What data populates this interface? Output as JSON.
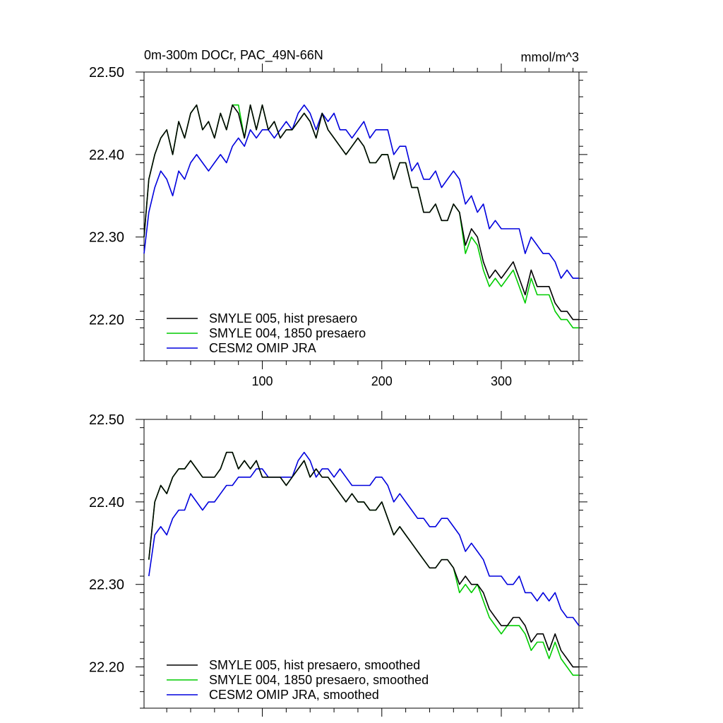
{
  "figure": {
    "top_title_left": "0m-300m DOCr, PAC_49N-66N",
    "top_title_right": "mmol/m^3"
  },
  "chart_data": [
    {
      "type": "line",
      "panel": "top",
      "xlim": [
        1,
        365
      ],
      "ylim": [
        22.15,
        22.5
      ],
      "x_ticks": [
        100,
        200,
        300
      ],
      "x_tick_labels": [
        "100",
        "200",
        "300"
      ],
      "y_ticks": [
        22.2,
        22.3,
        22.4,
        22.5
      ],
      "y_tick_labels": [
        "22.20",
        "22.30",
        "22.40",
        "22.50"
      ],
      "legend_placement": "bottom-left",
      "series": [
        {
          "name": "SMYLE 005, hist presaero",
          "color": "#000000",
          "x": [
            1,
            5,
            10,
            15,
            20,
            25,
            30,
            35,
            40,
            45,
            50,
            55,
            60,
            65,
            70,
            75,
            80,
            85,
            90,
            95,
            100,
            105,
            110,
            115,
            120,
            125,
            130,
            135,
            140,
            145,
            150,
            155,
            160,
            165,
            170,
            175,
            180,
            185,
            190,
            195,
            200,
            205,
            210,
            215,
            220,
            225,
            230,
            235,
            240,
            245,
            250,
            255,
            260,
            265,
            270,
            275,
            280,
            285,
            290,
            295,
            300,
            305,
            310,
            315,
            320,
            325,
            330,
            335,
            340,
            345,
            350,
            355,
            360,
            365
          ],
          "values": [
            22.3,
            22.37,
            22.4,
            22.42,
            22.43,
            22.4,
            22.44,
            22.42,
            22.45,
            22.46,
            22.43,
            22.44,
            22.42,
            22.45,
            22.43,
            22.46,
            22.45,
            22.42,
            22.46,
            22.43,
            22.46,
            22.43,
            22.44,
            22.42,
            22.43,
            22.43,
            22.44,
            22.45,
            22.44,
            22.42,
            22.45,
            22.43,
            22.42,
            22.41,
            22.4,
            22.41,
            22.42,
            22.41,
            22.39,
            22.39,
            22.4,
            22.4,
            22.37,
            22.39,
            22.39,
            22.36,
            22.36,
            22.33,
            22.33,
            22.34,
            22.32,
            22.32,
            22.34,
            22.33,
            22.29,
            22.31,
            22.3,
            22.27,
            22.25,
            22.26,
            22.25,
            22.26,
            22.27,
            22.25,
            22.23,
            22.26,
            22.24,
            22.24,
            22.24,
            22.22,
            22.21,
            22.21,
            22.2,
            22.2
          ]
        },
        {
          "name": "SMYLE 004, 1850 presaero",
          "color": "#00cc00",
          "x": [
            1,
            5,
            10,
            15,
            20,
            25,
            30,
            35,
            40,
            45,
            50,
            55,
            60,
            65,
            70,
            75,
            80,
            85,
            90,
            95,
            100,
            105,
            110,
            115,
            120,
            125,
            130,
            135,
            140,
            145,
            150,
            155,
            160,
            165,
            170,
            175,
            180,
            185,
            190,
            195,
            200,
            205,
            210,
            215,
            220,
            225,
            230,
            235,
            240,
            245,
            250,
            255,
            260,
            265,
            270,
            275,
            280,
            285,
            290,
            295,
            300,
            305,
            310,
            315,
            320,
            325,
            330,
            335,
            340,
            345,
            350,
            355,
            360,
            365
          ],
          "values": [
            22.3,
            22.37,
            22.4,
            22.42,
            22.43,
            22.4,
            22.44,
            22.42,
            22.45,
            22.46,
            22.43,
            22.44,
            22.42,
            22.45,
            22.43,
            22.46,
            22.46,
            22.42,
            22.46,
            22.43,
            22.46,
            22.43,
            22.44,
            22.42,
            22.43,
            22.43,
            22.44,
            22.45,
            22.44,
            22.42,
            22.45,
            22.43,
            22.42,
            22.41,
            22.4,
            22.41,
            22.42,
            22.41,
            22.39,
            22.39,
            22.4,
            22.4,
            22.37,
            22.39,
            22.39,
            22.36,
            22.36,
            22.33,
            22.33,
            22.34,
            22.32,
            22.32,
            22.34,
            22.33,
            22.28,
            22.3,
            22.29,
            22.26,
            22.24,
            22.25,
            22.24,
            22.25,
            22.26,
            22.24,
            22.22,
            22.25,
            22.23,
            22.23,
            22.23,
            22.21,
            22.2,
            22.2,
            22.19,
            22.19
          ]
        },
        {
          "name": "CESM2 OMIP JRA",
          "color": "#0000dd",
          "x": [
            1,
            5,
            10,
            15,
            20,
            25,
            30,
            35,
            40,
            45,
            50,
            55,
            60,
            65,
            70,
            75,
            80,
            85,
            90,
            95,
            100,
            105,
            110,
            115,
            120,
            125,
            130,
            135,
            140,
            145,
            150,
            155,
            160,
            165,
            170,
            175,
            180,
            185,
            190,
            195,
            200,
            205,
            210,
            215,
            220,
            225,
            230,
            235,
            240,
            245,
            250,
            255,
            260,
            265,
            270,
            275,
            280,
            285,
            290,
            295,
            300,
            305,
            310,
            315,
            320,
            325,
            330,
            335,
            340,
            345,
            350,
            355,
            360,
            365
          ],
          "values": [
            22.28,
            22.33,
            22.36,
            22.38,
            22.37,
            22.35,
            22.38,
            22.37,
            22.39,
            22.4,
            22.39,
            22.38,
            22.39,
            22.4,
            22.39,
            22.41,
            22.42,
            22.41,
            22.43,
            22.42,
            22.43,
            22.43,
            22.42,
            22.43,
            22.44,
            22.43,
            22.45,
            22.46,
            22.45,
            22.43,
            22.45,
            22.44,
            22.45,
            22.43,
            22.43,
            22.42,
            22.43,
            22.44,
            22.42,
            22.43,
            22.43,
            22.43,
            22.4,
            22.41,
            22.41,
            22.38,
            22.39,
            22.37,
            22.37,
            22.38,
            22.36,
            22.37,
            22.38,
            22.37,
            22.34,
            22.35,
            22.33,
            22.34,
            22.31,
            22.32,
            22.31,
            22.31,
            22.31,
            22.31,
            22.28,
            22.3,
            22.29,
            22.28,
            22.28,
            22.27,
            22.25,
            22.26,
            22.25,
            22.25
          ]
        }
      ]
    },
    {
      "type": "line",
      "panel": "bottom",
      "xlim": [
        1,
        365
      ],
      "ylim": [
        22.15,
        22.5
      ],
      "x_ticks": [
        100,
        200,
        300
      ],
      "y_ticks": [
        22.2,
        22.3,
        22.4,
        22.5
      ],
      "y_tick_labels": [
        "22.20",
        "22.30",
        "22.40",
        "22.50"
      ],
      "legend_placement": "bottom-left",
      "series": [
        {
          "name": "SMYLE 005, hist presaero, smoothed",
          "color": "#000000",
          "x": [
            5,
            10,
            15,
            20,
            25,
            30,
            35,
            40,
            45,
            50,
            55,
            60,
            65,
            70,
            75,
            80,
            85,
            90,
            95,
            100,
            105,
            110,
            115,
            120,
            125,
            130,
            135,
            140,
            145,
            150,
            155,
            160,
            165,
            170,
            175,
            180,
            185,
            190,
            195,
            200,
            205,
            210,
            215,
            220,
            225,
            230,
            235,
            240,
            245,
            250,
            255,
            260,
            265,
            270,
            275,
            280,
            285,
            290,
            295,
            300,
            305,
            310,
            315,
            320,
            325,
            330,
            335,
            340,
            345,
            350,
            355,
            360,
            365
          ],
          "values": [
            22.33,
            22.4,
            22.42,
            22.41,
            22.43,
            22.44,
            22.44,
            22.45,
            22.44,
            22.43,
            22.43,
            22.43,
            22.44,
            22.46,
            22.46,
            22.44,
            22.45,
            22.44,
            22.45,
            22.43,
            22.43,
            22.43,
            22.43,
            22.42,
            22.43,
            22.44,
            22.45,
            22.43,
            22.44,
            22.43,
            22.43,
            22.42,
            22.41,
            22.4,
            22.41,
            22.4,
            22.4,
            22.39,
            22.39,
            22.4,
            22.38,
            22.36,
            22.37,
            22.36,
            22.35,
            22.34,
            22.33,
            22.32,
            22.32,
            22.33,
            22.33,
            22.32,
            22.3,
            22.31,
            22.3,
            22.3,
            22.29,
            22.27,
            22.26,
            22.25,
            22.25,
            22.26,
            22.26,
            22.25,
            22.23,
            22.24,
            22.24,
            22.22,
            22.24,
            22.22,
            22.21,
            22.2,
            22.2
          ]
        },
        {
          "name": "SMYLE 004, 1850 presaero, smoothed",
          "color": "#00cc00",
          "x": [
            5,
            10,
            15,
            20,
            25,
            30,
            35,
            40,
            45,
            50,
            55,
            60,
            65,
            70,
            75,
            80,
            85,
            90,
            95,
            100,
            105,
            110,
            115,
            120,
            125,
            130,
            135,
            140,
            145,
            150,
            155,
            160,
            165,
            170,
            175,
            180,
            185,
            190,
            195,
            200,
            205,
            210,
            215,
            220,
            225,
            230,
            235,
            240,
            245,
            250,
            255,
            260,
            265,
            270,
            275,
            280,
            285,
            290,
            295,
            300,
            305,
            310,
            315,
            320,
            325,
            330,
            335,
            340,
            345,
            350,
            355,
            360,
            365
          ],
          "values": [
            22.33,
            22.4,
            22.42,
            22.41,
            22.43,
            22.44,
            22.44,
            22.45,
            22.44,
            22.43,
            22.43,
            22.43,
            22.44,
            22.46,
            22.46,
            22.44,
            22.45,
            22.44,
            22.45,
            22.43,
            22.43,
            22.43,
            22.43,
            22.42,
            22.43,
            22.44,
            22.45,
            22.43,
            22.44,
            22.43,
            22.43,
            22.42,
            22.41,
            22.4,
            22.41,
            22.4,
            22.4,
            22.39,
            22.39,
            22.4,
            22.38,
            22.36,
            22.37,
            22.36,
            22.35,
            22.34,
            22.33,
            22.32,
            22.32,
            22.33,
            22.33,
            22.32,
            22.29,
            22.3,
            22.29,
            22.3,
            22.28,
            22.26,
            22.25,
            22.24,
            22.25,
            22.25,
            22.25,
            22.24,
            22.22,
            22.23,
            22.23,
            22.21,
            22.23,
            22.21,
            22.2,
            22.19,
            22.19
          ]
        },
        {
          "name": "CESM2 OMIP JRA, smoothed",
          "color": "#0000dd",
          "x": [
            5,
            10,
            15,
            20,
            25,
            30,
            35,
            40,
            45,
            50,
            55,
            60,
            65,
            70,
            75,
            80,
            85,
            90,
            95,
            100,
            105,
            110,
            115,
            120,
            125,
            130,
            135,
            140,
            145,
            150,
            155,
            160,
            165,
            170,
            175,
            180,
            185,
            190,
            195,
            200,
            205,
            210,
            215,
            220,
            225,
            230,
            235,
            240,
            245,
            250,
            255,
            260,
            265,
            270,
            275,
            280,
            285,
            290,
            295,
            300,
            305,
            310,
            315,
            320,
            325,
            330,
            335,
            340,
            345,
            350,
            355,
            360,
            365
          ],
          "values": [
            22.31,
            22.36,
            22.37,
            22.36,
            22.38,
            22.39,
            22.39,
            22.41,
            22.4,
            22.39,
            22.4,
            22.4,
            22.41,
            22.42,
            22.42,
            22.43,
            22.43,
            22.43,
            22.44,
            22.44,
            22.43,
            22.43,
            22.43,
            22.43,
            22.43,
            22.45,
            22.46,
            22.45,
            22.43,
            22.44,
            22.44,
            22.43,
            22.44,
            22.43,
            22.42,
            22.42,
            22.42,
            22.42,
            22.43,
            22.43,
            22.42,
            22.4,
            22.41,
            22.4,
            22.39,
            22.38,
            22.38,
            22.37,
            22.37,
            22.38,
            22.38,
            22.37,
            22.36,
            22.34,
            22.35,
            22.34,
            22.33,
            22.31,
            22.31,
            22.31,
            22.3,
            22.3,
            22.31,
            22.29,
            22.29,
            22.28,
            22.29,
            22.28,
            22.29,
            22.27,
            22.26,
            22.26,
            22.25
          ]
        }
      ]
    }
  ]
}
